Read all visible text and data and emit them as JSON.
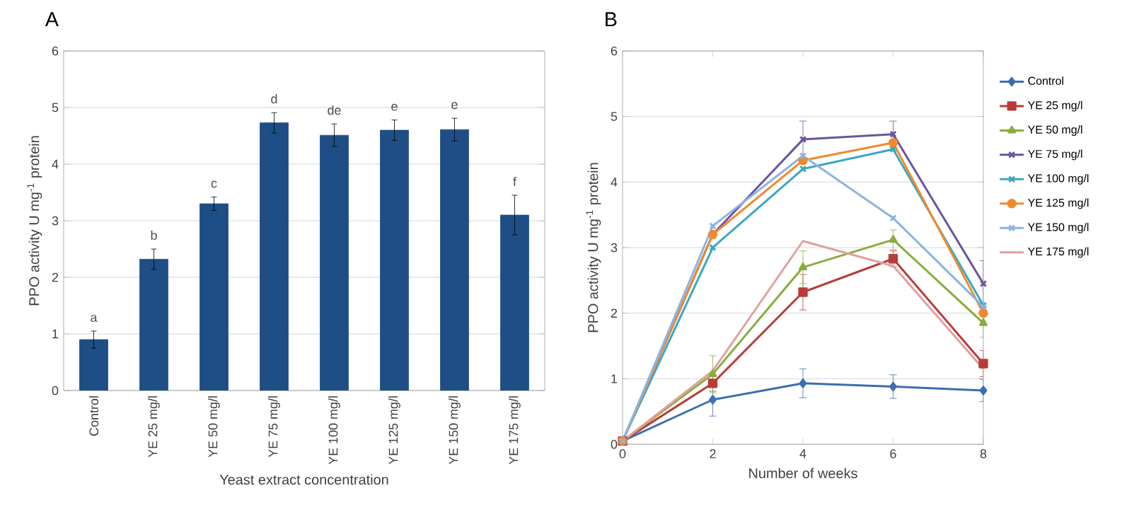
{
  "chart_data": [
    {
      "type": "bar",
      "title": "A",
      "xlabel": "Yeast extract concentration",
      "ylabel": "PPO activity U mg$^{-1}$ protein",
      "categories": [
        "Control",
        "YE 25 mg/l",
        "YE 50 mg/l",
        "YE 75 mg/l",
        "YE 100 mg/l",
        "YE 125 mg/l",
        "YE 150 mg/l",
        "YE 175 mg/l"
      ],
      "values": [
        0.9,
        2.32,
        3.3,
        4.73,
        4.51,
        4.6,
        4.61,
        3.1
      ],
      "errors": [
        0.15,
        0.18,
        0.12,
        0.18,
        0.2,
        0.18,
        0.2,
        0.35
      ],
      "color": "#1f4e86",
      "ylim": [
        0,
        6
      ],
      "yticks": [
        0,
        1,
        2,
        3,
        4,
        5,
        6
      ],
      "grid": "y",
      "annotations": [
        "a",
        "b",
        "c",
        "d",
        "de",
        "e",
        "e",
        "f"
      ]
    },
    {
      "type": "line",
      "title": "B",
      "xlabel": "Number of weeks",
      "ylabel": "PPO activity U mg$^{-1}$ protein",
      "x": [
        0,
        2,
        4,
        6,
        8
      ],
      "xlim": [
        0,
        8
      ],
      "xticks": [
        0,
        2,
        4,
        6,
        8
      ],
      "ylim": [
        0,
        6
      ],
      "yticks": [
        0,
        1,
        2,
        3,
        4,
        5,
        6
      ],
      "grid": "y",
      "legend": "right",
      "series": [
        {
          "name": "Control",
          "color": "#3a6fb0",
          "marker": "diamond",
          "values": [
            0.05,
            0.68,
            0.93,
            0.88,
            0.82
          ],
          "errors": [
            null,
            0.25,
            0.22,
            0.18,
            0.17
          ]
        },
        {
          "name": "YE 25 mg/l",
          "color": "#b83c3a",
          "marker": "square",
          "values": [
            0.05,
            0.93,
            2.32,
            2.83,
            1.23
          ],
          "errors": [
            null,
            0.12,
            0.27,
            0.12,
            0.2
          ]
        },
        {
          "name": "YE 50 mg/l",
          "color": "#8aac3e",
          "marker": "triangle",
          "values": [
            0.05,
            1.07,
            2.7,
            3.12,
            1.85
          ],
          "errors": [
            null,
            0.28,
            0.25,
            0.15,
            0.22
          ]
        },
        {
          "name": "YE 75 mg/l",
          "color": "#6a55a0",
          "marker": "cross",
          "values": [
            0.05,
            3.2,
            4.65,
            4.73,
            2.45
          ],
          "errors": [
            null,
            null,
            0.28,
            0.2,
            0.35
          ]
        },
        {
          "name": "YE 100 mg/l",
          "color": "#3aa8c1",
          "marker": "cross",
          "values": [
            0.05,
            3.0,
            4.2,
            4.5,
            2.12
          ]
        },
        {
          "name": "YE 125 mg/l",
          "color": "#f0892e",
          "marker": "circle",
          "values": [
            0.05,
            3.2,
            4.33,
            4.6,
            2.0
          ]
        },
        {
          "name": "YE 150 mg/l",
          "color": "#8db3e2",
          "marker": "cross",
          "values": [
            0.05,
            3.33,
            4.4,
            3.45,
            2.1
          ]
        },
        {
          "name": "YE 175 mg/l",
          "color": "#e0a0a0",
          "marker": "none",
          "values": [
            0.05,
            1.12,
            3.1,
            2.72,
            1.15
          ]
        }
      ]
    }
  ]
}
